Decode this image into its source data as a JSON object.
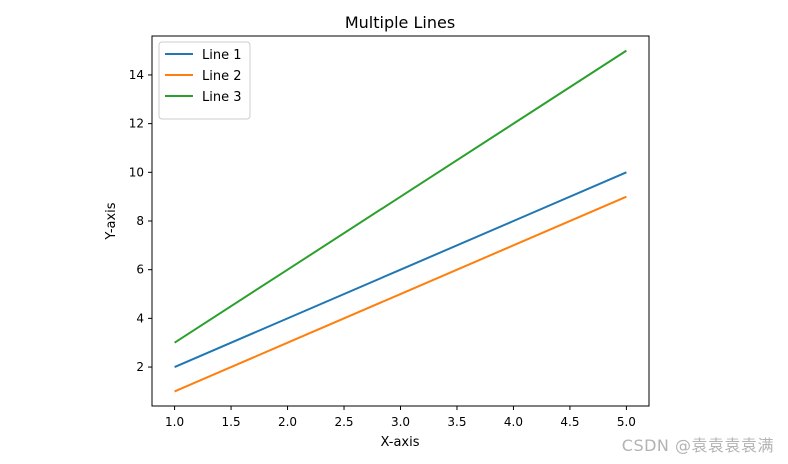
{
  "chart_data": {
    "type": "line",
    "title": "Multiple Lines",
    "xlabel": "X-axis",
    "ylabel": "Y-axis",
    "xlim": [
      0.8,
      5.2
    ],
    "ylim": [
      0.4,
      15.6
    ],
    "x_ticks": [
      "1.0",
      "1.5",
      "2.0",
      "2.5",
      "3.0",
      "3.5",
      "4.0",
      "4.5",
      "5.0"
    ],
    "y_ticks": [
      "2",
      "4",
      "6",
      "8",
      "10",
      "12",
      "14"
    ],
    "legend_position": "top-left",
    "grid": false,
    "x": [
      1,
      2,
      3,
      4,
      5
    ],
    "series": [
      {
        "name": "Line 1",
        "color": "#1f77b4",
        "values": [
          2,
          4,
          6,
          8,
          10
        ]
      },
      {
        "name": "Line 2",
        "color": "#ff7f0e",
        "values": [
          1,
          3,
          5,
          7,
          9
        ]
      },
      {
        "name": "Line 3",
        "color": "#2ca02c",
        "values": [
          3,
          6,
          9,
          12,
          15
        ]
      }
    ]
  },
  "watermark": "CSDN @袁袁袁袁满"
}
